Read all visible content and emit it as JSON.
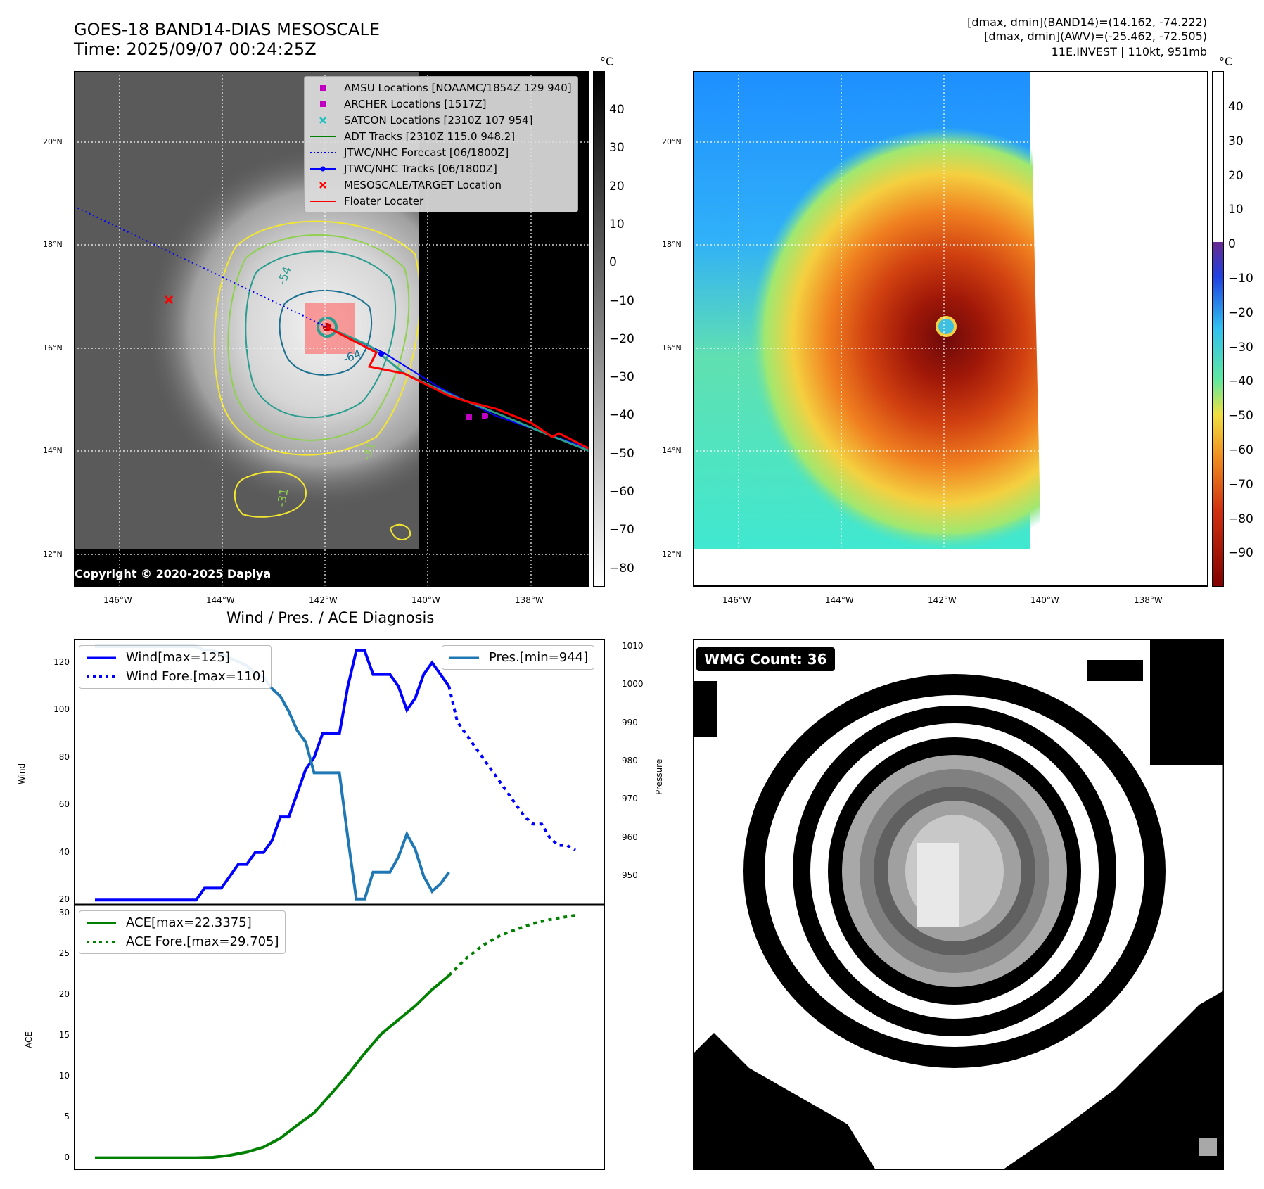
{
  "header": {
    "title_line1": "GOES-18 BAND14-DIAS MESOSCALE",
    "title_line2": "Time: 2025/09/07 00:24:25Z",
    "info_line1": "[dmax, dmin](BAND14)=(14.162, -74.222)",
    "info_line2": "[dmax, dmin](AWV)=(-25.462, -72.505)",
    "info_line3": "11E.INVEST | 110kt, 951mb"
  },
  "map_axes": {
    "lat_labels": [
      "20°N",
      "18°N",
      "16°N",
      "14°N",
      "12°N"
    ],
    "lon_labels": [
      "146°W",
      "144°W",
      "142°W",
      "140°W",
      "138°W"
    ]
  },
  "colorbar_left": {
    "unit": "°C",
    "ticks": [
      "40",
      "30",
      "20",
      "10",
      "0",
      "−10",
      "−20",
      "−30",
      "−40",
      "−50",
      "−60",
      "−70",
      "−80"
    ]
  },
  "colorbar_right": {
    "unit": "°C",
    "ticks": [
      "40",
      "30",
      "20",
      "10",
      "0",
      "−10",
      "−20",
      "−30",
      "−40",
      "−50",
      "−60",
      "−70",
      "−80",
      "−90"
    ]
  },
  "map_legend": {
    "items": [
      {
        "label": "AMSU Locations [NOAAMC/1854Z 129 940]",
        "color": "#c000c0",
        "marker": "square"
      },
      {
        "label": "ARCHER Locations [1517Z]",
        "color": "#c000c0",
        "marker": "square"
      },
      {
        "label": "SATCON Locations [2310Z 107 954]",
        "color": "#20c0c0",
        "marker": "x"
      },
      {
        "label": "ADT Tracks [2310Z 115.0 948.2]",
        "color": "#008000",
        "marker": "line"
      },
      {
        "label": "JTWC/NHC Forecast [06/1800Z]",
        "color": "#0000ff",
        "marker": "dotted"
      },
      {
        "label": "JTWC/NHC Tracks [06/1800Z]",
        "color": "#0000ff",
        "marker": "line-dot"
      },
      {
        "label": "MESOSCALE/TARGET Location",
        "color": "#ff0000",
        "marker": "x"
      },
      {
        "label": "Floater Locater",
        "color": "#ff0000",
        "marker": "line"
      }
    ]
  },
  "map_contours": [
    "-54",
    "-64",
    "-31",
    "-31"
  ],
  "copyright": "Copyright © 2020-2025 Dapiya",
  "wmg_badge": "WMG Count: 36",
  "chart_data": [
    {
      "type": "line",
      "title": "Wind / Pres. / ACE Diagnosis",
      "ylabel": "Wind",
      "ylim": [
        18,
        130
      ],
      "yticks": [
        20,
        40,
        60,
        80,
        100,
        120
      ],
      "legend": [
        "Wind[max=125]",
        "Wind Fore.[max=110]"
      ],
      "series": [
        {
          "name": "Wind[max=125]",
          "color": "#0000ff",
          "style": "solid",
          "x": [
            0,
            1,
            2,
            3,
            4,
            5,
            6,
            7,
            8,
            9,
            10,
            11,
            12,
            13,
            14,
            15,
            16,
            17,
            18,
            19,
            20,
            21,
            22,
            23,
            24,
            25,
            26,
            27,
            28,
            29,
            30,
            31,
            32,
            33,
            34,
            35,
            36,
            37,
            38,
            39,
            40,
            41,
            42
          ],
          "values": [
            20,
            20,
            20,
            20,
            20,
            20,
            20,
            20,
            20,
            20,
            20,
            20,
            20,
            25,
            25,
            25,
            30,
            35,
            35,
            40,
            40,
            45,
            55,
            55,
            65,
            75,
            80,
            90,
            90,
            90,
            110,
            125,
            125,
            115,
            115,
            115,
            110,
            100,
            105,
            115,
            120,
            115,
            110
          ]
        },
        {
          "name": "Wind Fore.[max=110]",
          "color": "#0000ff",
          "style": "dotted",
          "x": [
            42,
            43,
            44,
            45,
            46,
            47,
            48,
            49,
            50,
            51,
            52,
            53,
            54,
            55,
            56,
            57
          ],
          "values": [
            110,
            95,
            90,
            85,
            80,
            75,
            70,
            65,
            60,
            55,
            52,
            52,
            46,
            43,
            43,
            41
          ]
        }
      ]
    },
    {
      "type": "line",
      "ylabel": "Pressure",
      "ylim": [
        942.5,
        1012
      ],
      "yticks": [
        950,
        960,
        970,
        980,
        990,
        1000,
        1010
      ],
      "legend": [
        "Pres.[min=944]"
      ],
      "series": [
        {
          "name": "Pres.[min=944]",
          "color": "#1f77b4",
          "style": "solid",
          "x": [
            0,
            1,
            2,
            3,
            4,
            5,
            6,
            7,
            8,
            9,
            10,
            11,
            12,
            13,
            14,
            15,
            16,
            17,
            18,
            19,
            20,
            21,
            22,
            23,
            24,
            25,
            26,
            27,
            28,
            29,
            30,
            31,
            32,
            33,
            34,
            35,
            36,
            37,
            38,
            39,
            40,
            41,
            42
          ],
          "values": [
            1010,
            1010,
            1010,
            1010,
            1010,
            1010,
            1010,
            1010,
            1010,
            1010,
            1010,
            1010,
            1010,
            1009,
            1009,
            1008,
            1007,
            1006,
            1005,
            1003,
            1002,
            999,
            997,
            993,
            988,
            985,
            977,
            977,
            977,
            977,
            960,
            944,
            944,
            951,
            951,
            951,
            955,
            961,
            957,
            950,
            946,
            948,
            951
          ]
        }
      ]
    },
    {
      "type": "line",
      "ylabel": "ACE",
      "ylim": [
        -1.5,
        31
      ],
      "yticks": [
        0,
        5,
        10,
        15,
        20,
        25,
        30
      ],
      "legend": [
        "ACE[max=22.3375]",
        "ACE Fore.[max=29.705]"
      ],
      "series": [
        {
          "name": "ACE[max=22.3375]",
          "color": "#008000",
          "style": "solid",
          "x": [
            0,
            4,
            8,
            12,
            14,
            16,
            18,
            20,
            22,
            24,
            26,
            28,
            30,
            32,
            34,
            36,
            38,
            40,
            42
          ],
          "values": [
            0,
            0,
            0,
            0,
            0.05,
            0.3,
            0.7,
            1.3,
            2.4,
            4.0,
            5.5,
            7.8,
            10.2,
            12.8,
            15.2,
            16.9,
            18.6,
            20.6,
            22.34
          ]
        },
        {
          "name": "ACE Fore.[max=29.705]",
          "color": "#008000",
          "style": "dotted",
          "x": [
            42,
            44,
            46,
            48,
            50,
            52,
            54,
            56,
            57
          ],
          "values": [
            22.34,
            24.4,
            26.0,
            27.2,
            28.0,
            28.7,
            29.2,
            29.55,
            29.705
          ]
        }
      ]
    }
  ]
}
